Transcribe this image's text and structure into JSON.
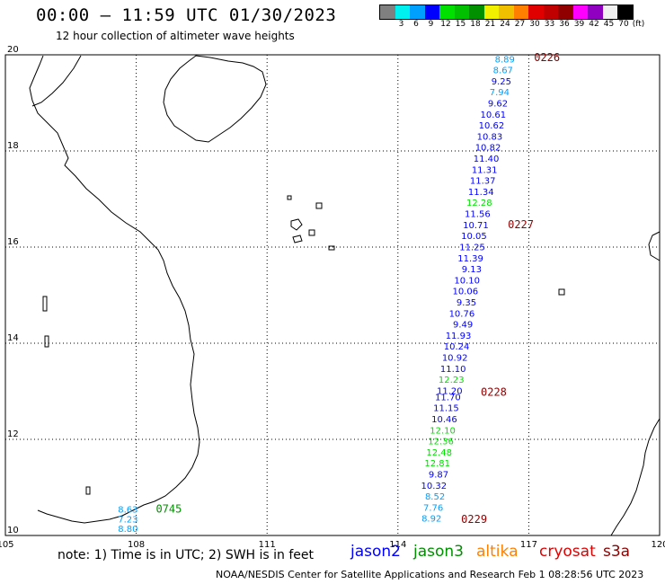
{
  "header": {
    "title": "00:00 – 11:59 UTC 01/30/2023",
    "subtitle": "12 hour collection of altimeter wave heights"
  },
  "scale": {
    "colors": [
      "#808080",
      "#00f0f0",
      "#00a0ff",
      "#0000ff",
      "#00e000",
      "#00c000",
      "#009000",
      "#f0f000",
      "#f0c000",
      "#ff8000",
      "#e00000",
      "#c00000",
      "#900000",
      "#ff00ff",
      "#9000c0",
      "#f0f0f0",
      "#000000"
    ],
    "labels": [
      "3",
      "6",
      "9",
      "12",
      "15",
      "18",
      "21",
      "24",
      "27",
      "30",
      "33",
      "36",
      "39",
      "42",
      "45",
      "70",
      "(ft)"
    ]
  },
  "axes": {
    "lon_labels": [
      "105",
      "108",
      "111",
      "114",
      "117",
      "120"
    ],
    "lat_labels": [
      "20",
      "18",
      "16",
      "14",
      "12",
      "10"
    ]
  },
  "track_points": [
    {
      "lon": 116.68,
      "lat": 19.92,
      "swh": "8.89",
      "color": "#00a0ff"
    },
    {
      "lon": 116.64,
      "lat": 19.69,
      "swh": "8.67",
      "color": "#00a0ff"
    },
    {
      "lon": 116.6,
      "lat": 19.46,
      "swh": "9.25",
      "color": "#0000ff"
    },
    {
      "lon": 116.56,
      "lat": 19.23,
      "swh": "7.94",
      "color": "#00a0ff"
    },
    {
      "lon": 116.52,
      "lat": 19.0,
      "swh": "9.62",
      "color": "#0000ff"
    },
    {
      "lon": 116.48,
      "lat": 18.77,
      "swh": "10.61",
      "color": "#0000ff"
    },
    {
      "lon": 116.44,
      "lat": 18.54,
      "swh": "10.62",
      "color": "#0000ff"
    },
    {
      "lon": 116.4,
      "lat": 18.31,
      "swh": "10.83",
      "color": "#0000ff"
    },
    {
      "lon": 116.36,
      "lat": 18.08,
      "swh": "10.82",
      "color": "#0000ff"
    },
    {
      "lon": 116.32,
      "lat": 17.85,
      "swh": "11.40",
      "color": "#0000ff"
    },
    {
      "lon": 116.28,
      "lat": 17.62,
      "swh": "11.31",
      "color": "#0000ff"
    },
    {
      "lon": 116.24,
      "lat": 17.39,
      "swh": "11.37",
      "color": "#0000ff"
    },
    {
      "lon": 116.2,
      "lat": 17.16,
      "swh": "11.34",
      "color": "#0000ff"
    },
    {
      "lon": 116.16,
      "lat": 16.93,
      "swh": "12.28",
      "color": "#00e000"
    },
    {
      "lon": 116.12,
      "lat": 16.7,
      "swh": "11.56",
      "color": "#0000ff"
    },
    {
      "lon": 116.08,
      "lat": 16.47,
      "swh": "10.71",
      "color": "#0000ff"
    },
    {
      "lon": 116.04,
      "lat": 16.24,
      "swh": "10.05",
      "color": "#0000ff"
    },
    {
      "lon": 116.0,
      "lat": 16.01,
      "swh": "11.25",
      "color": "#0000ff"
    },
    {
      "lon": 115.96,
      "lat": 15.78,
      "swh": "11.39",
      "color": "#0000ff"
    },
    {
      "lon": 115.92,
      "lat": 15.55,
      "swh": "9.13",
      "color": "#0000ff"
    },
    {
      "lon": 115.88,
      "lat": 15.32,
      "swh": "10.10",
      "color": "#0000ff"
    },
    {
      "lon": 115.84,
      "lat": 15.09,
      "swh": "10.06",
      "color": "#0000ff"
    },
    {
      "lon": 115.8,
      "lat": 14.86,
      "swh": "9.35",
      "color": "#0000ff"
    },
    {
      "lon": 115.76,
      "lat": 14.63,
      "swh": "10.76",
      "color": "#0000ff"
    },
    {
      "lon": 115.72,
      "lat": 14.4,
      "swh": "9.49",
      "color": "#0000ff"
    },
    {
      "lon": 115.68,
      "lat": 14.17,
      "swh": "11.93",
      "color": "#0000ff"
    },
    {
      "lon": 115.64,
      "lat": 13.94,
      "swh": "10.24",
      "color": "#0000ff"
    },
    {
      "lon": 115.6,
      "lat": 13.71,
      "swh": "10.92",
      "color": "#0000ff"
    },
    {
      "lon": 115.56,
      "lat": 13.48,
      "swh": "11.10",
      "color": "#0000ff"
    },
    {
      "lon": 115.52,
      "lat": 13.25,
      "swh": "12.23",
      "color": "#00e000"
    },
    {
      "lon": 115.48,
      "lat": 13.02,
      "swh": "11.20",
      "color": "#0000ff"
    },
    {
      "lon": 115.44,
      "lat": 12.89,
      "swh": "11.70",
      "color": "#0000ff"
    },
    {
      "lon": 115.4,
      "lat": 12.66,
      "swh": "11.15",
      "color": "#0000ff"
    },
    {
      "lon": 115.36,
      "lat": 12.43,
      "swh": "10.46",
      "color": "#0000ff"
    },
    {
      "lon": 115.32,
      "lat": 12.2,
      "swh": "12.10",
      "color": "#00e000"
    },
    {
      "lon": 115.28,
      "lat": 11.97,
      "swh": "12.36",
      "color": "#00e000"
    },
    {
      "lon": 115.24,
      "lat": 11.74,
      "swh": "12.48",
      "color": "#00e000"
    },
    {
      "lon": 115.2,
      "lat": 11.51,
      "swh": "12.81",
      "color": "#00e000"
    },
    {
      "lon": 115.16,
      "lat": 11.28,
      "swh": "9.87",
      "color": "#0000ff"
    },
    {
      "lon": 115.12,
      "lat": 11.05,
      "swh": "10.32",
      "color": "#0000ff"
    },
    {
      "lon": 115.08,
      "lat": 10.82,
      "swh": "8.52",
      "color": "#00a0ff"
    },
    {
      "lon": 115.04,
      "lat": 10.59,
      "swh": "7.76",
      "color": "#00a0ff"
    },
    {
      "lon": 115.0,
      "lat": 10.36,
      "swh": "8.92",
      "color": "#00a0ff"
    },
    {
      "lon": 108.04,
      "lat": 10.55,
      "swh": "8.63",
      "color": "#00a0ff"
    },
    {
      "lon": 108.04,
      "lat": 10.35,
      "swh": "7.23",
      "color": "#00a0ff"
    },
    {
      "lon": 108.04,
      "lat": 10.15,
      "swh": "8.80",
      "color": "#00a0ff"
    }
  ],
  "time_labels": [
    {
      "lon": 117.12,
      "lat": 19.94,
      "text": "0226",
      "color": "#900000"
    },
    {
      "lon": 116.52,
      "lat": 16.47,
      "text": "0227",
      "color": "#900000"
    },
    {
      "lon": 115.9,
      "lat": 12.98,
      "text": "0228",
      "color": "#900000"
    },
    {
      "lon": 115.45,
      "lat": 10.34,
      "text": "0229",
      "color": "#900000"
    },
    {
      "lon": 108.45,
      "lat": 10.55,
      "text": "0745",
      "color": "#009000"
    }
  ],
  "note": "note:  1) Time is in UTC;  2) SWH is in feet",
  "legend": [
    {
      "text": "jason2",
      "color": "#0000ff"
    },
    {
      "text": "jason3",
      "color": "#009000"
    },
    {
      "text": "altika",
      "color": "#ff8000"
    },
    {
      "text": "cryosat",
      "color": "#e00000"
    },
    {
      "text": "s3a",
      "color": "#900000"
    }
  ],
  "footer": "NOAA/NESDIS Center for Satellite Applications and Research    Feb  1 08:28:56 UTC 2023"
}
